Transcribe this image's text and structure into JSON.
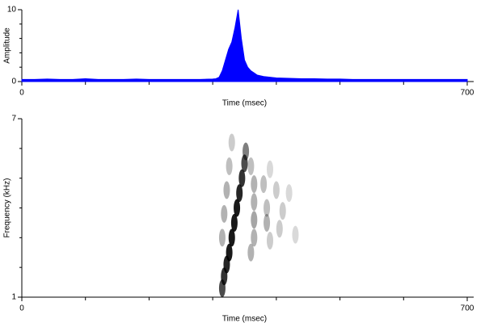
{
  "chart_data": [
    {
      "type": "area",
      "x_label": "Time (msec)",
      "y_label": "Amplitude",
      "color": "#0000ff",
      "x": [
        0,
        20,
        40,
        60,
        80,
        100,
        120,
        140,
        160,
        180,
        200,
        220,
        240,
        260,
        280,
        300,
        305,
        310,
        315,
        320,
        325,
        330,
        335,
        340,
        345,
        350,
        355,
        360,
        365,
        370,
        375,
        380,
        390,
        400,
        420,
        440,
        460,
        480,
        500,
        520,
        540,
        560,
        580,
        600,
        620,
        640,
        660,
        680,
        700
      ],
      "values": [
        0.3,
        0.3,
        0.35,
        0.3,
        0.3,
        0.4,
        0.3,
        0.3,
        0.3,
        0.35,
        0.3,
        0.3,
        0.3,
        0.3,
        0.3,
        0.35,
        0.4,
        0.6,
        1.5,
        3.0,
        4.5,
        5.5,
        7.5,
        10,
        6,
        3,
        2,
        1.5,
        1.2,
        0.9,
        0.8,
        0.7,
        0.6,
        0.5,
        0.45,
        0.4,
        0.4,
        0.35,
        0.35,
        0.3,
        0.3,
        0.3,
        0.3,
        0.3,
        0.3,
        0.3,
        0.3,
        0.3,
        0.3
      ],
      "xlim": [
        0,
        700
      ],
      "xticks": [
        0,
        700
      ],
      "minor_xticks": [
        100,
        200,
        300,
        400,
        500,
        600
      ],
      "ylim": [
        0,
        10
      ],
      "yticks": [
        0,
        10
      ],
      "minor_yticks": [
        2,
        4,
        6,
        8
      ]
    },
    {
      "type": "spectrogram",
      "x_label": "Time (msec)",
      "y_label": "Frequency (kHz)",
      "color": "#000000",
      "x": [
        315,
        318,
        322,
        326,
        330,
        334,
        338,
        342,
        346,
        350,
        352,
        315,
        318,
        322,
        326,
        330,
        365,
        380,
        400,
        420,
        365,
        385,
        410,
        365,
        385,
        405,
        430,
        365,
        390,
        360,
        390,
        360
      ],
      "values": [
        1.3,
        1.7,
        2.1,
        2.5,
        3.0,
        3.5,
        4.0,
        4.5,
        5.0,
        5.5,
        5.9,
        3.0,
        3.8,
        4.6,
        5.4,
        6.2,
        4.8,
        4.8,
        4.6,
        4.5,
        4.2,
        4.0,
        3.9,
        3.6,
        3.5,
        3.3,
        3.1,
        3.0,
        2.9,
        5.4,
        5.3,
        2.5
      ],
      "intensity": [
        0.7,
        0.8,
        0.85,
        0.9,
        0.9,
        0.9,
        0.9,
        0.85,
        0.8,
        0.7,
        0.5,
        0.3,
        0.3,
        0.3,
        0.25,
        0.2,
        0.3,
        0.25,
        0.2,
        0.15,
        0.3,
        0.25,
        0.2,
        0.35,
        0.3,
        0.2,
        0.15,
        0.3,
        0.2,
        0.25,
        0.15,
        0.3
      ],
      "xlim": [
        0,
        700
      ],
      "xticks": [
        0,
        700
      ],
      "minor_xticks": [
        100,
        200,
        300,
        400,
        500,
        600
      ],
      "ylim": [
        1,
        7
      ],
      "yticks": [
        1,
        7
      ],
      "minor_yticks": [
        2,
        3,
        4,
        5,
        6
      ]
    }
  ]
}
